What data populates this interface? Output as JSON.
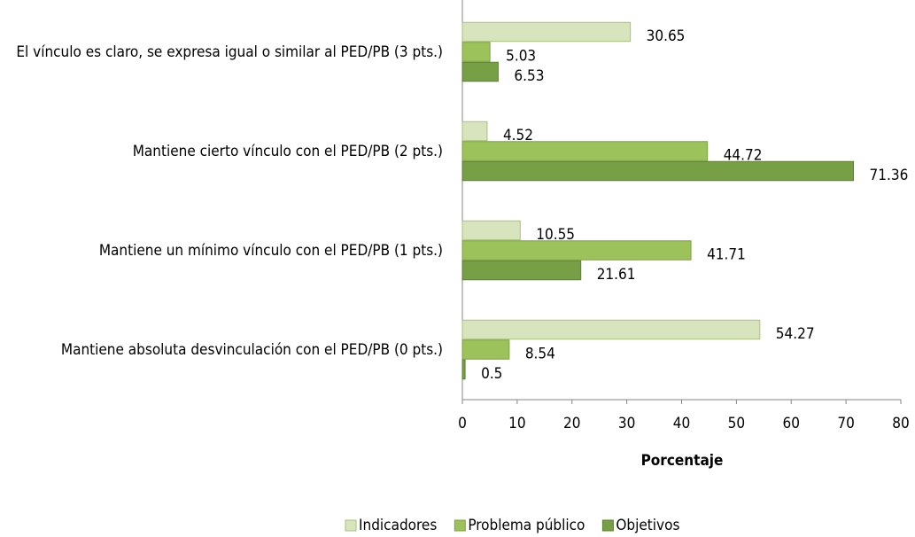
{
  "chart_data": {
    "type": "hbar",
    "categories": [
      "El vínculo es claro, se expresa igual o similar al PED/PB (3 pts.)",
      "Mantiene cierto vínculo con el PED/PB (2 pts.)",
      "Mantiene un mínimo vínculo con el PED/PB (1 pts.)",
      "Mantiene absoluta desvinculación con el PED/PB (0 pts.)"
    ],
    "series": [
      {
        "name": "Indicadores",
        "color": "#d8e4bc",
        "values": [
          30.65,
          4.52,
          10.55,
          54.27
        ]
      },
      {
        "name": "Problema público",
        "color": "#9bc25b",
        "values": [
          5.03,
          44.72,
          41.71,
          8.54
        ]
      },
      {
        "name": "Objetivos",
        "color": "#77a046",
        "values": [
          6.53,
          71.36,
          21.61,
          0.5
        ]
      }
    ],
    "xlabel": "Porcentaje",
    "xlim": [
      0,
      80
    ],
    "xticks": [
      0,
      10,
      20,
      30,
      40,
      50,
      60,
      70,
      80
    ],
    "legend": "bottom"
  }
}
